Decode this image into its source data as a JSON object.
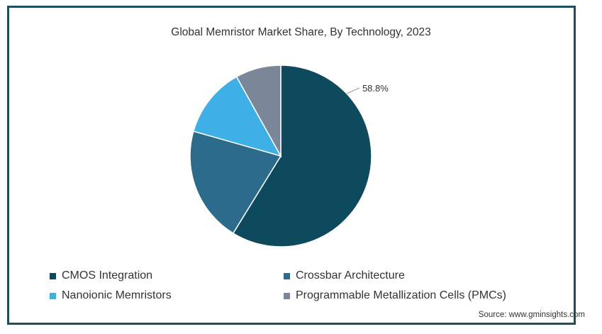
{
  "chart_data": {
    "type": "pie",
    "title": "Global Memristor Market Share, By Technology, 2023",
    "categories": [
      "CMOS Integration",
      "Crossbar Architecture",
      "Nanoionic Memristors",
      "Programmable Metallization Cells (PMCs)"
    ],
    "values": [
      58.8,
      20.6,
      12.5,
      8.1
    ],
    "colors": [
      "#0d4a5e",
      "#2d6b8c",
      "#3fb0e6",
      "#7a8798"
    ],
    "data_labels": [
      "58.8%",
      "",
      "",
      ""
    ],
    "legend_placement": "bottom"
  },
  "source": "Source: www.gminsights.com"
}
